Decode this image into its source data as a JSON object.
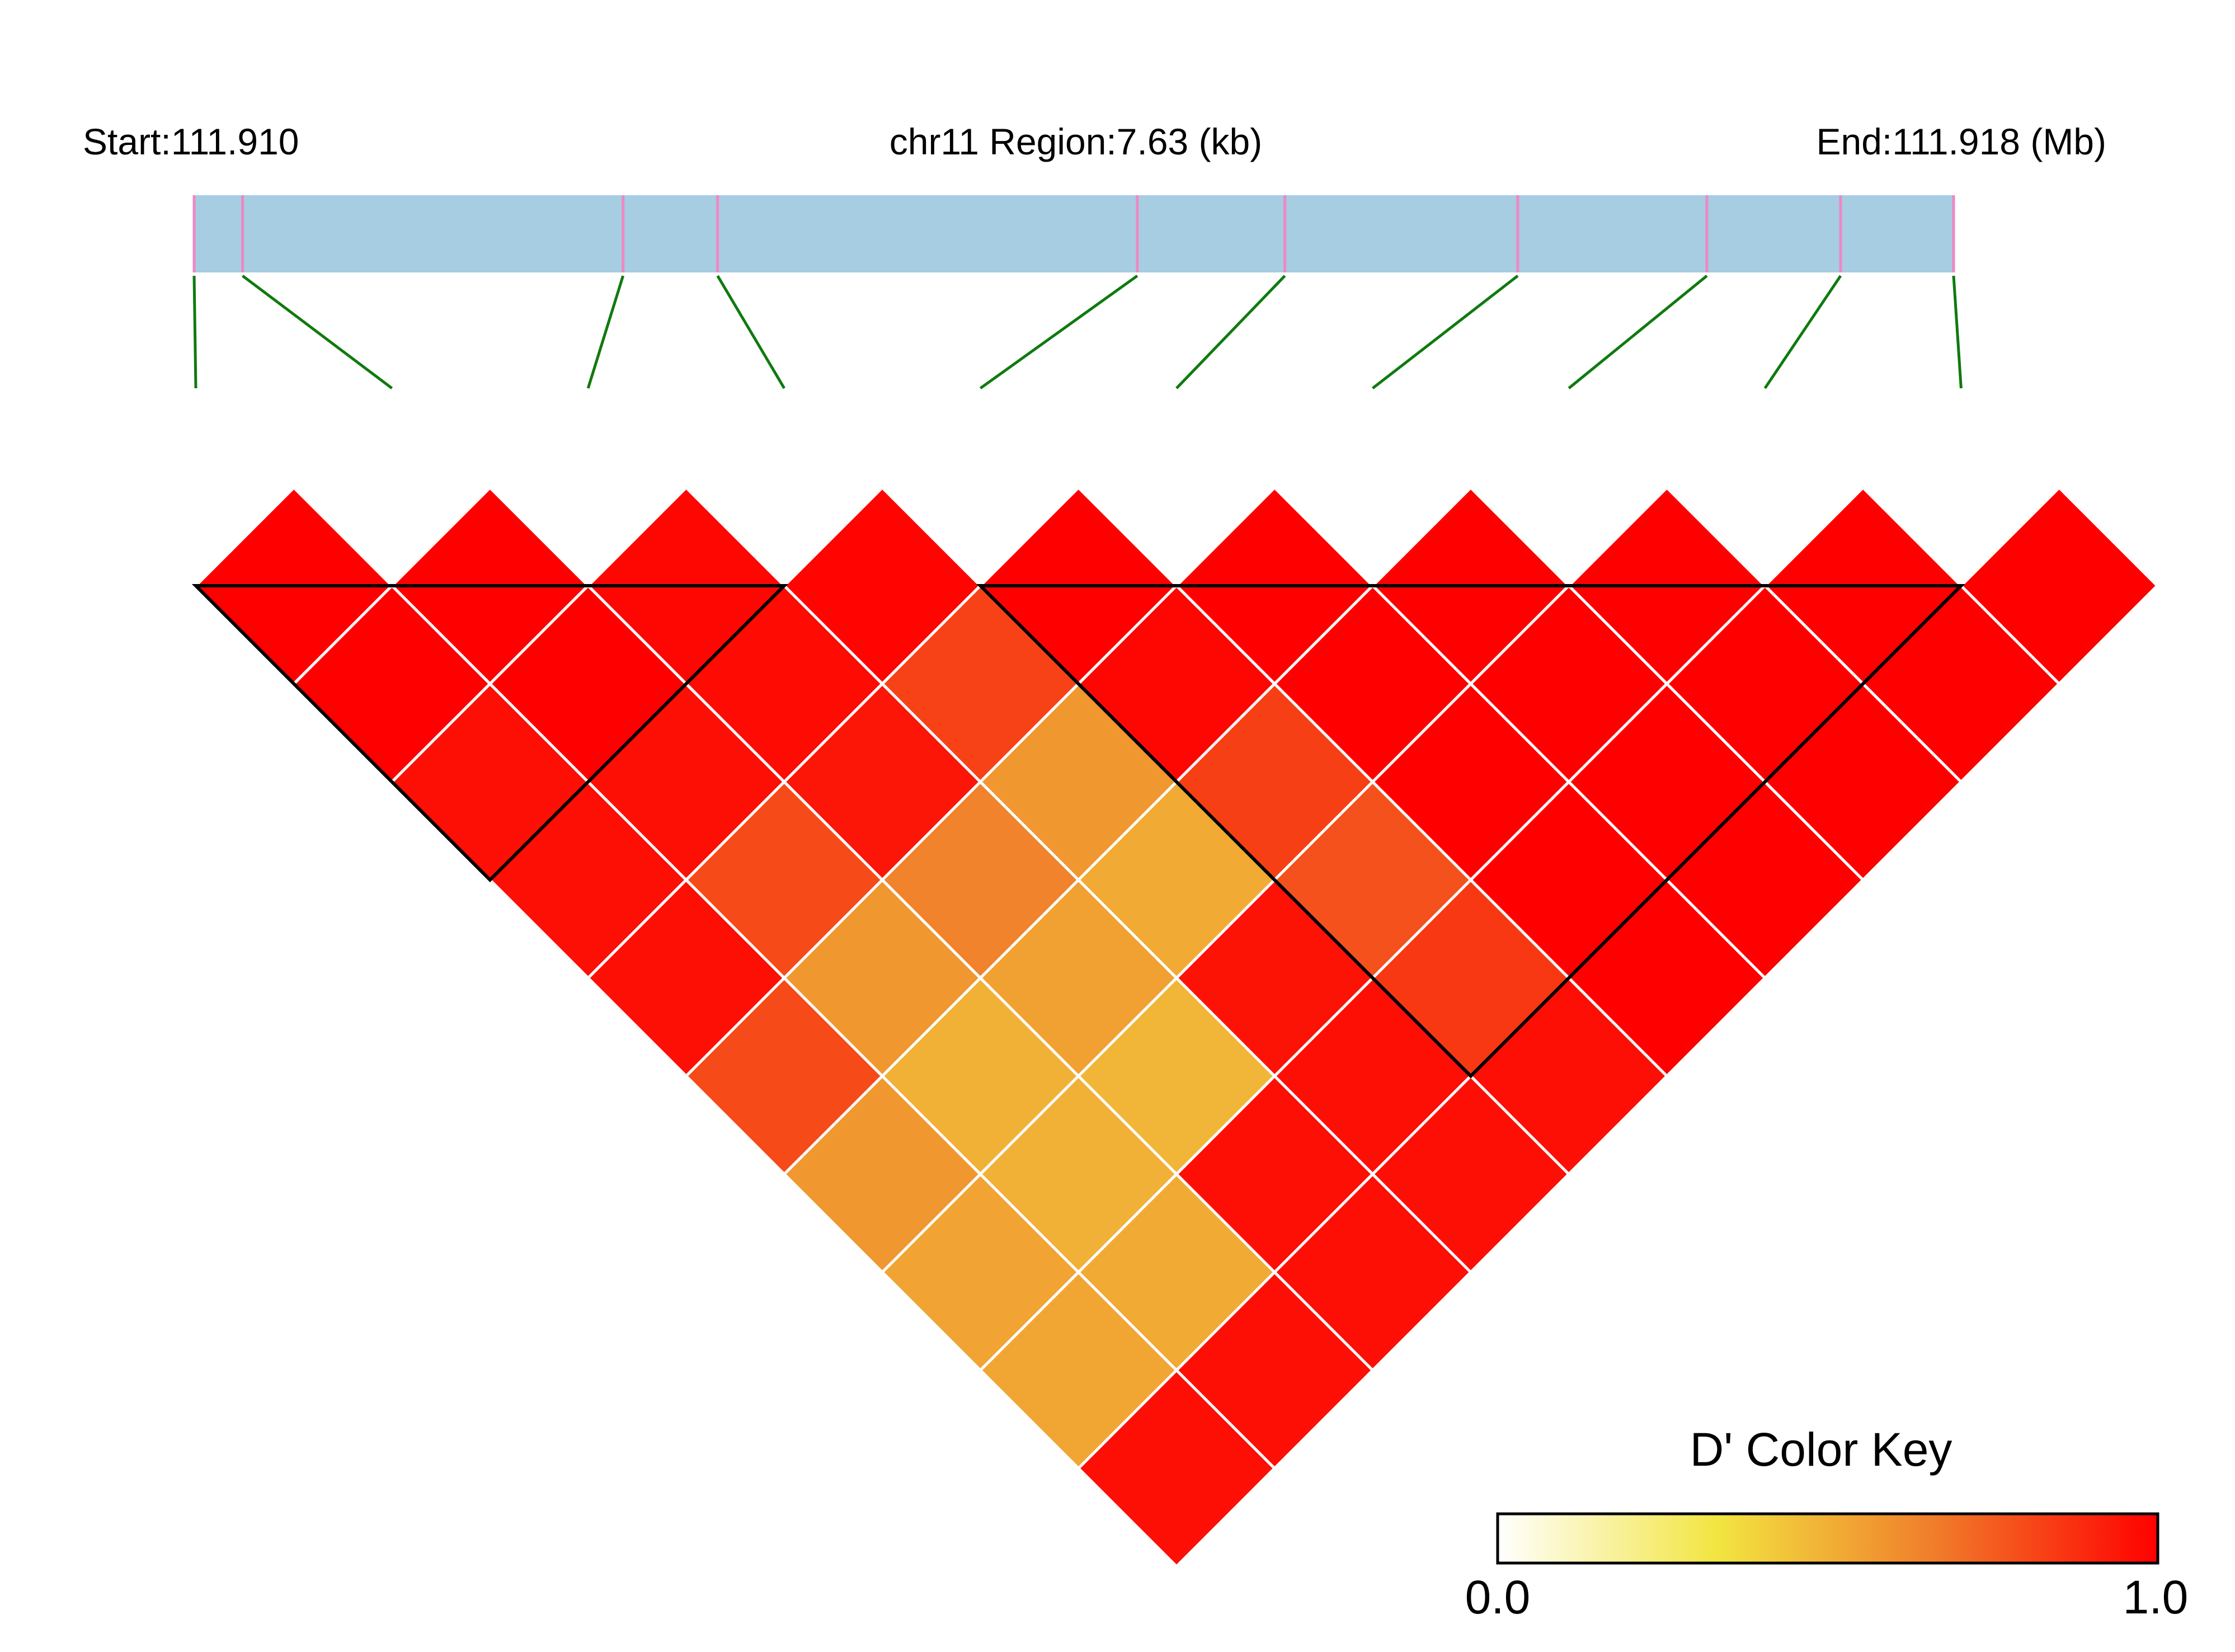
{
  "chart_data": {
    "type": "heatmap",
    "subtype": "linkage-disequilibrium-triangle",
    "header": {
      "start_label": "Start:111.910",
      "region_label": "chr11 Region:7.63 (kb)",
      "end_label": "End:111.918 (Mb)"
    },
    "chromosome": "chr11",
    "region_start_mb": 111.91,
    "region_end_mb": 111.918,
    "region_length_kb": 7.63,
    "snp_positions_kb": [
      0,
      0.21,
      1.86,
      2.27,
      4.09,
      4.73,
      5.74,
      6.56,
      7.14,
      7.63
    ],
    "dprime_matrix": [
      [
        1.0,
        1.0,
        0.96,
        0.96,
        0.96,
        0.8,
        0.58,
        0.54,
        0.53,
        0.96
      ],
      [
        null,
        1.0,
        1.0,
        0.96,
        0.8,
        0.58,
        0.5,
        0.5,
        0.52,
        0.96
      ],
      [
        null,
        null,
        0.98,
        0.97,
        0.94,
        0.64,
        0.55,
        0.48,
        0.96,
        0.96
      ],
      [
        null,
        null,
        null,
        0.99,
        0.82,
        0.58,
        0.52,
        0.95,
        0.96,
        0.96
      ],
      [
        null,
        null,
        null,
        null,
        1.0,
        0.98,
        0.83,
        0.78,
        0.85,
        0.96
      ],
      [
        null,
        null,
        null,
        null,
        null,
        1.0,
        1.0,
        1.0,
        1.0,
        1.0
      ],
      [
        null,
        null,
        null,
        null,
        null,
        null,
        1.0,
        1.0,
        1.0,
        1.0
      ],
      [
        null,
        null,
        null,
        null,
        null,
        null,
        null,
        1.0,
        1.0,
        1.0
      ],
      [
        null,
        null,
        null,
        null,
        null,
        null,
        null,
        null,
        1.0,
        1.0
      ],
      [
        null,
        null,
        null,
        null,
        null,
        null,
        null,
        null,
        null,
        1.0
      ]
    ],
    "ld_blocks": [
      [
        0,
        3
      ],
      [
        4,
        9
      ]
    ],
    "colors": {
      "region_bar": "#a6cde2",
      "snp_tick": "#ee88c4",
      "connector": "#0f7a0f",
      "cell_border": "#ffffff",
      "block_outline": "#000000"
    },
    "color_key": {
      "title": "D' Color Key",
      "min_label": "0.0",
      "max_label": "1.0",
      "range": [
        0,
        1
      ],
      "stops": [
        "#ffffff",
        "#f2e541",
        "#f07b2a",
        "#ff0000"
      ]
    }
  }
}
